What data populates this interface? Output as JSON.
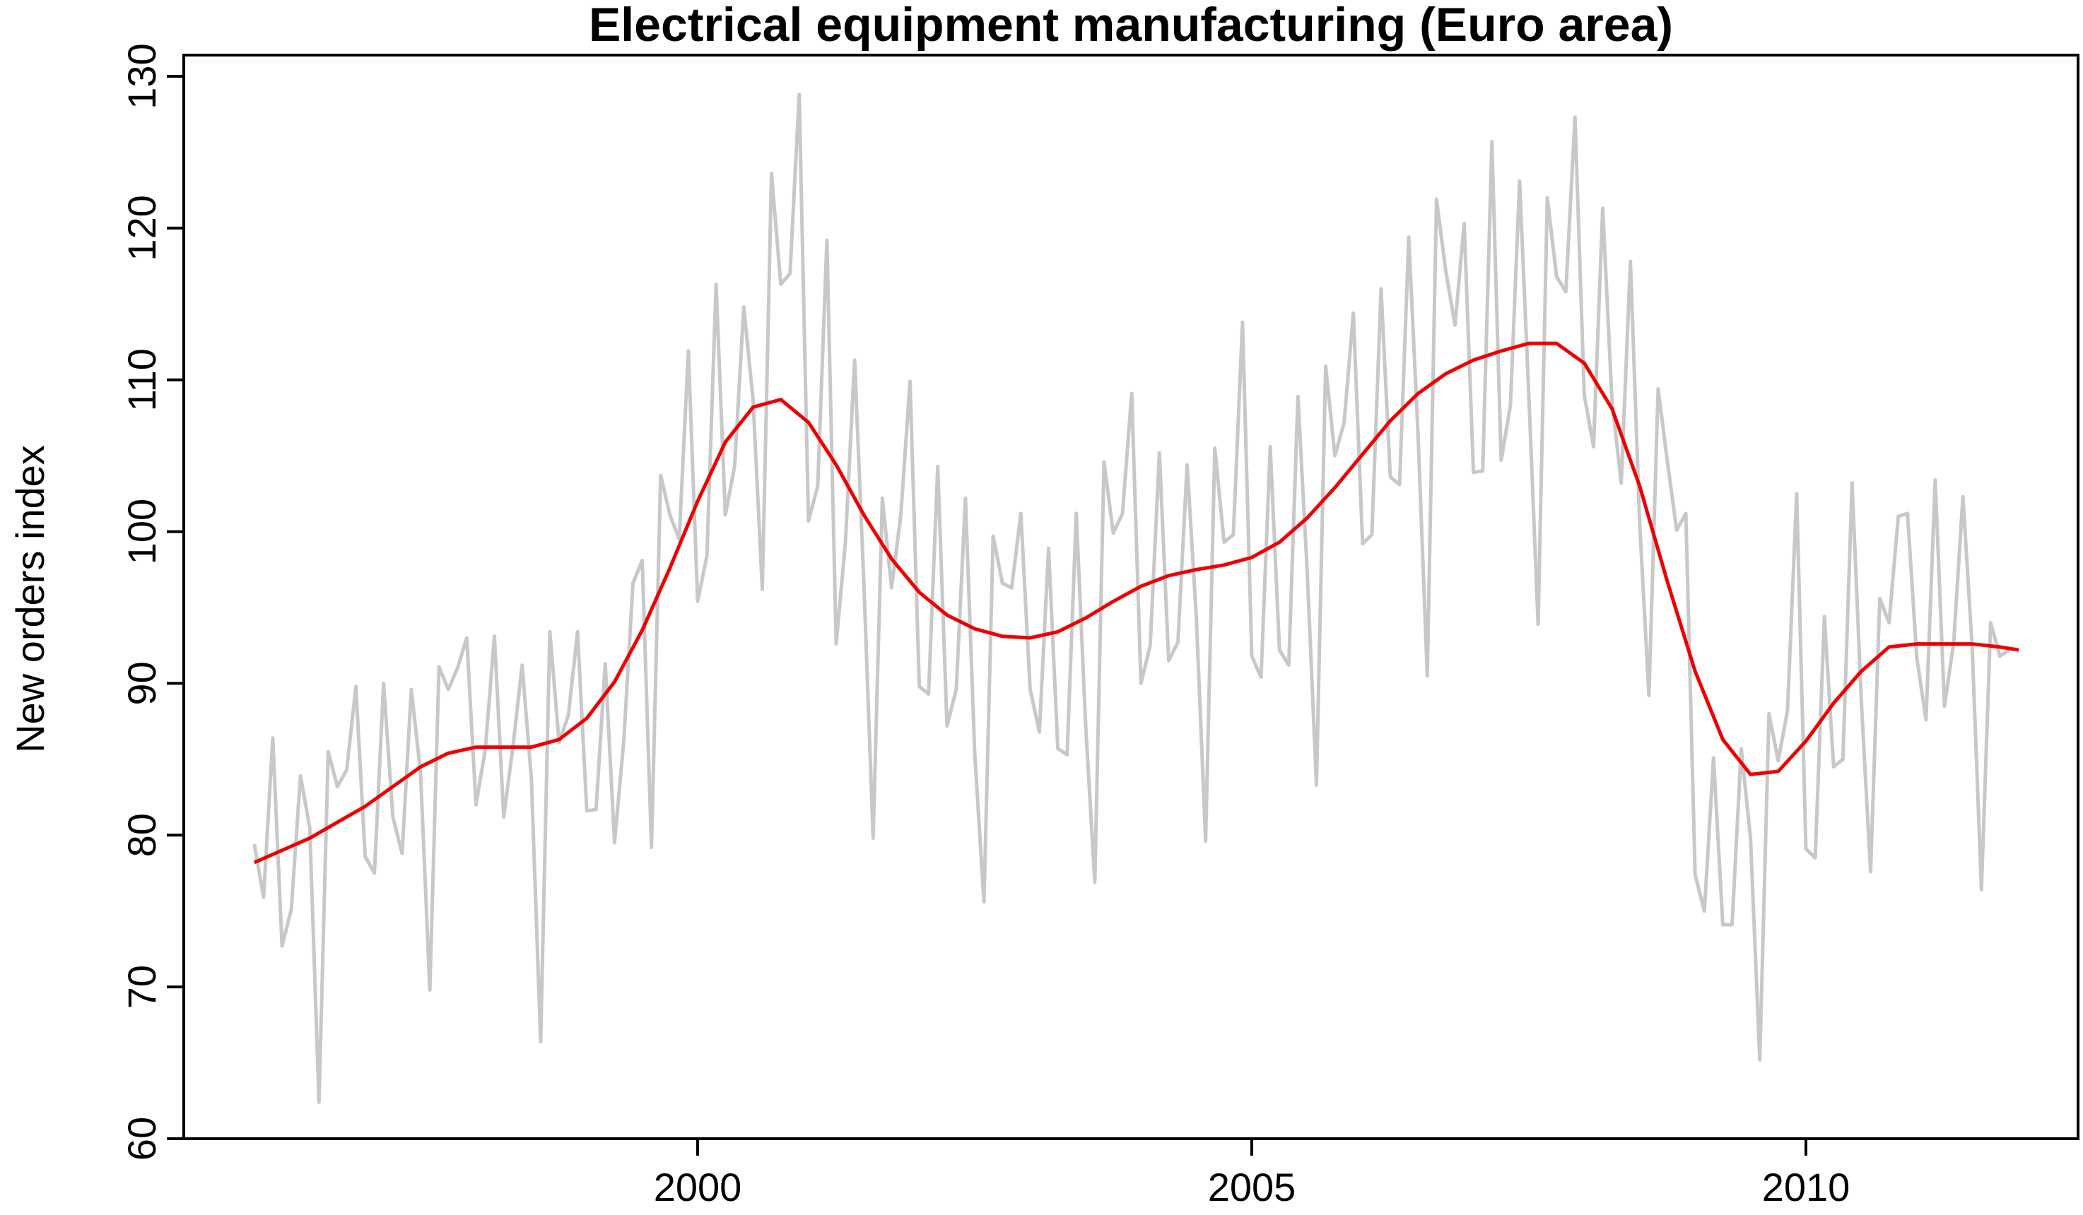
{
  "chart_data": {
    "type": "line",
    "title": "Electrical equipment manufacturing (Euro area)",
    "xlabel": "",
    "ylabel": "New orders index",
    "xlim": [
      1995.8,
      2012.4
    ],
    "ylim": [
      60,
      130
    ],
    "x_ticks": [
      2000,
      2005,
      2010
    ],
    "y_ticks": [
      60,
      70,
      80,
      90,
      100,
      110,
      120,
      130
    ],
    "grid": false,
    "legend": "none",
    "series": [
      {
        "role": "monthly",
        "color": "#c8c8c8",
        "start": 1996.0,
        "step": 0.08333333,
        "values": [
          79.4,
          75.9,
          86.4,
          72.7,
          75.1,
          83.9,
          80.5,
          62.4,
          85.5,
          83.2,
          84.3,
          89.8,
          78.6,
          77.5,
          90.0,
          81.2,
          78.8,
          89.6,
          84.1,
          69.8,
          91.1,
          89.6,
          91.0,
          93.0,
          82.0,
          85.6,
          93.1,
          81.2,
          85.8,
          91.2,
          83.7,
          66.4,
          93.4,
          86.1,
          87.9,
          93.4,
          81.6,
          81.7,
          91.3,
          79.5,
          86.2,
          96.6,
          98.1,
          79.2,
          103.7,
          101.1,
          99.5,
          111.9,
          95.4,
          98.4,
          116.3,
          101.1,
          104.3,
          114.8,
          108.7,
          96.2,
          123.6,
          116.3,
          117.0,
          128.8,
          100.7,
          103.0,
          119.2,
          92.6,
          99.3,
          111.3,
          96.6,
          79.8,
          102.2,
          96.3,
          101.1,
          109.9,
          89.8,
          89.3,
          104.3,
          87.2,
          89.6,
          102.2,
          85.4,
          75.6,
          99.7,
          96.6,
          96.3,
          101.2,
          89.6,
          86.8,
          98.9,
          85.7,
          85.3,
          101.2,
          87.4,
          76.9,
          104.6,
          99.9,
          101.2,
          109.1,
          90.0,
          92.5,
          105.2,
          91.5,
          92.7,
          104.4,
          94.3,
          79.6,
          105.5,
          99.3,
          99.8,
          113.8,
          91.8,
          90.4,
          105.6,
          92.2,
          91.2,
          108.9,
          97.4,
          83.3,
          110.9,
          105.0,
          107.2,
          114.4,
          99.2,
          99.8,
          116.0,
          103.6,
          103.1,
          119.4,
          106.4,
          90.5,
          121.9,
          117.2,
          113.6,
          120.3,
          103.9,
          104.0,
          125.7,
          104.7,
          108.3,
          123.1,
          108.9,
          93.9,
          122.0,
          116.8,
          115.8,
          127.3,
          109.0,
          105.6,
          121.3,
          108.6,
          103.2,
          117.8,
          100.5,
          89.2,
          109.4,
          104.6,
          100.1,
          101.2,
          77.4,
          75.0,
          85.1,
          74.1,
          74.1,
          85.7,
          79.8,
          65.2,
          88.0,
          84.9,
          88.2,
          102.5,
          79.1,
          78.5,
          94.4,
          84.5,
          85.0,
          103.2,
          88.8,
          77.6,
          95.6,
          94.0,
          101.0,
          101.2,
          91.7,
          87.6,
          103.4,
          88.5,
          92.7,
          102.3,
          92.4,
          76.4,
          94.0,
          91.8,
          92.2
        ]
      },
      {
        "role": "trend",
        "color": "#ee0000",
        "points": [
          [
            1996.0,
            78.2
          ],
          [
            1996.5,
            79.8
          ],
          [
            1997.0,
            81.9
          ],
          [
            1997.5,
            84.5
          ],
          [
            1997.75,
            85.4
          ],
          [
            1998.0,
            85.8
          ],
          [
            1998.5,
            85.8
          ],
          [
            1998.75,
            86.3
          ],
          [
            1999.0,
            87.7
          ],
          [
            1999.25,
            90.1
          ],
          [
            1999.5,
            93.5
          ],
          [
            1999.75,
            97.6
          ],
          [
            2000.0,
            102.0
          ],
          [
            2000.25,
            105.9
          ],
          [
            2000.5,
            108.2
          ],
          [
            2000.75,
            108.7
          ],
          [
            2001.0,
            107.2
          ],
          [
            2001.25,
            104.4
          ],
          [
            2001.5,
            101.1
          ],
          [
            2001.75,
            98.2
          ],
          [
            2002.0,
            96.0
          ],
          [
            2002.25,
            94.5
          ],
          [
            2002.5,
            93.6
          ],
          [
            2002.75,
            93.1
          ],
          [
            2003.0,
            93.0
          ],
          [
            2003.25,
            93.4
          ],
          [
            2003.5,
            94.3
          ],
          [
            2003.75,
            95.4
          ],
          [
            2004.0,
            96.4
          ],
          [
            2004.25,
            97.1
          ],
          [
            2004.5,
            97.5
          ],
          [
            2004.75,
            97.8
          ],
          [
            2005.0,
            98.3
          ],
          [
            2005.25,
            99.3
          ],
          [
            2005.5,
            100.9
          ],
          [
            2005.75,
            102.9
          ],
          [
            2006.0,
            105.1
          ],
          [
            2006.25,
            107.3
          ],
          [
            2006.5,
            109.1
          ],
          [
            2006.75,
            110.4
          ],
          [
            2007.0,
            111.3
          ],
          [
            2007.25,
            111.9
          ],
          [
            2007.5,
            112.4
          ],
          [
            2007.75,
            112.4
          ],
          [
            2008.0,
            111.1
          ],
          [
            2008.25,
            108.1
          ],
          [
            2008.5,
            103.0
          ],
          [
            2008.75,
            96.7
          ],
          [
            2009.0,
            90.8
          ],
          [
            2009.25,
            86.3
          ],
          [
            2009.5,
            84.0
          ],
          [
            2009.75,
            84.2
          ],
          [
            2010.0,
            86.2
          ],
          [
            2010.25,
            88.7
          ],
          [
            2010.5,
            90.8
          ],
          [
            2010.75,
            92.4
          ],
          [
            2011.0,
            92.6
          ],
          [
            2011.25,
            92.6
          ],
          [
            2011.5,
            92.6
          ],
          [
            2011.75,
            92.4
          ],
          [
            2011.92,
            92.2
          ]
        ]
      }
    ]
  }
}
